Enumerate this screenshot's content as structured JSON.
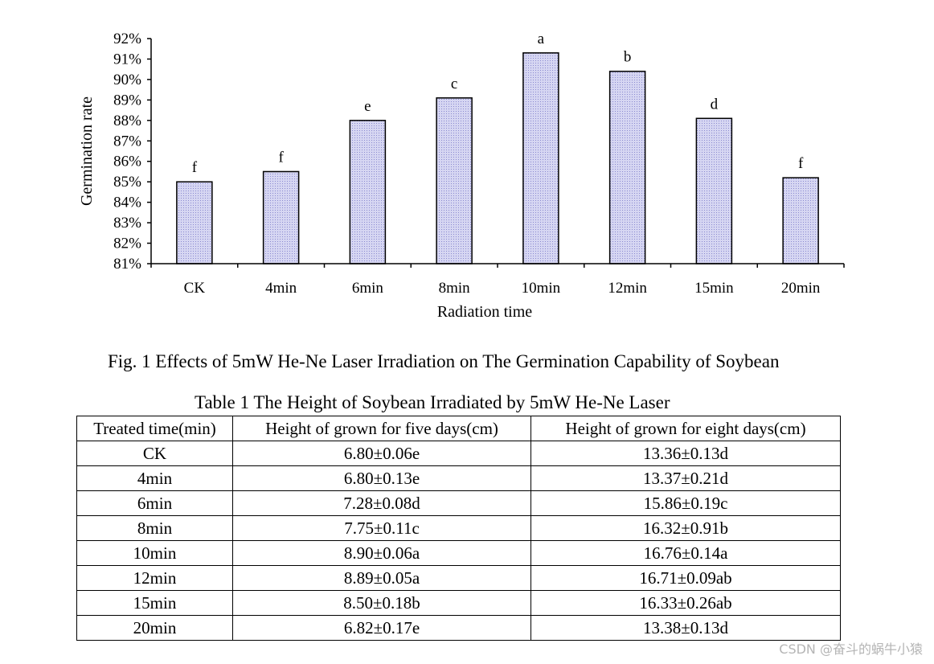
{
  "chart_data": {
    "type": "bar",
    "title": "",
    "xlabel": "Radiation time",
    "ylabel": "Germination rate",
    "ylim": [
      81,
      92
    ],
    "yticks": [
      "81%",
      "82%",
      "83%",
      "84%",
      "85%",
      "86%",
      "87%",
      "88%",
      "89%",
      "90%",
      "91%",
      "92%"
    ],
    "categories": [
      "CK",
      "4min",
      "6min",
      "8min",
      "10min",
      "12min",
      "15min",
      "20min"
    ],
    "values": [
      85.0,
      85.5,
      88.0,
      89.1,
      91.3,
      90.4,
      88.1,
      85.2
    ],
    "letters": [
      "f",
      "f",
      "e",
      "c",
      "a",
      "b",
      "d",
      "f"
    ],
    "bar_color": "#c8c8f0"
  },
  "figure_caption": "Fig. 1 Effects of 5mW He-Ne Laser Irradiation on The Germination Capability of Soybean",
  "table": {
    "title": "Table 1 The Height of Soybean Irradiated by 5mW He-Ne Laser",
    "headers": [
      "Treated time(min)",
      "Height of grown for five days(cm)",
      "Height of grown for eight days(cm)"
    ],
    "rows": [
      [
        "CK",
        "6.80±0.06e",
        "13.36±0.13d"
      ],
      [
        "4min",
        "6.80±0.13e",
        "13.37±0.21d"
      ],
      [
        "6min",
        "7.28±0.08d",
        "15.86±0.19c"
      ],
      [
        "8min",
        "7.75±0.11c",
        "16.32±0.91b"
      ],
      [
        "10min",
        "8.90±0.06a",
        "16.76±0.14a"
      ],
      [
        "12min",
        "8.89±0.05a",
        "16.71±0.09ab"
      ],
      [
        "15min",
        "8.50±0.18b",
        "16.33±0.26ab"
      ],
      [
        "20min",
        "6.82±0.17e",
        "13.38±0.13d"
      ]
    ]
  },
  "watermark": "CSDN @奋斗的蜗牛小猿"
}
